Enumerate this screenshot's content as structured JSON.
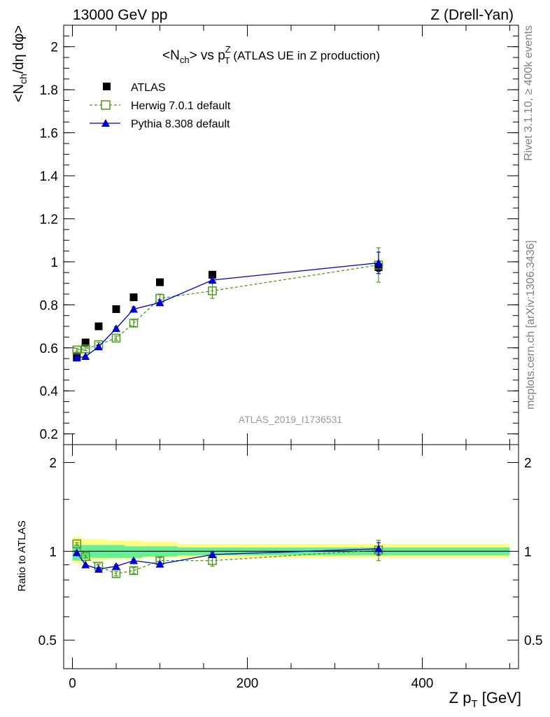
{
  "header": {
    "left": "13000 GeV pp",
    "right": "Z (Drell-Yan)"
  },
  "side_text": {
    "top": "Rivet 3.1.10, ≥ 400k events",
    "bottom": "mcplots.cern.ch [arXiv:1306.3436]"
  },
  "chart_data": [
    {
      "type": "scatter",
      "title": "<N_ch> vs p_T^Z (ATLAS UE in Z production)",
      "title_parts": {
        "a": "<N",
        "a_sub": "ch",
        "b": "> vs p",
        "b_sub": "T",
        "b_sup": "Z",
        "c": " (ATLAS UE in Z production)"
      },
      "ylabel": "<N_ch/dη dφ>",
      "ylabel_parts": {
        "a": "<N",
        "a_sub": "ch",
        "b": "/dη dφ>"
      },
      "watermark": "ATLAS_2019_I1736531",
      "xlim": [
        -10,
        510
      ],
      "ylim": [
        0.15,
        2.1
      ],
      "yticks": [
        0.2,
        0.4,
        0.6,
        0.8,
        1,
        1.2,
        1.4,
        1.6,
        1.8,
        2
      ],
      "ytick_labels": [
        "0.2",
        "0.4",
        "0.6",
        "0.8",
        "1",
        "1.2",
        "1.4",
        "1.6",
        "1.8",
        "2"
      ],
      "legend_position": "top-left",
      "series": [
        {
          "name": "ATLAS",
          "color": "#000000",
          "marker": "filled-square",
          "line": "none",
          "x": [
            5,
            15,
            30,
            50,
            70,
            100,
            160,
            350
          ],
          "y": [
            0.56,
            0.625,
            0.7,
            0.78,
            0.835,
            0.905,
            0.94,
            0.975
          ],
          "yerr": [
            0.005,
            0.005,
            0.005,
            0.005,
            0.005,
            0.005,
            0.01,
            0.02
          ]
        },
        {
          "name": "Herwig 7.0.1 default",
          "color": "#4a9a1a",
          "marker": "open-square",
          "line": "dashed",
          "x": [
            5,
            15,
            30,
            50,
            70,
            100,
            160,
            350
          ],
          "y": [
            0.59,
            0.595,
            0.615,
            0.645,
            0.715,
            0.83,
            0.865,
            0.985
          ],
          "yerr": [
            0.008,
            0.008,
            0.01,
            0.01,
            0.015,
            0.02,
            0.035,
            0.08
          ]
        },
        {
          "name": "Pythia 8.308 default",
          "color": "#0000cc",
          "marker": "filled-triangle",
          "line": "solid",
          "x": [
            5,
            15,
            30,
            50,
            70,
            100,
            160,
            350
          ],
          "y": [
            0.553,
            0.56,
            0.605,
            0.69,
            0.78,
            0.81,
            0.915,
            0.995
          ],
          "yerr": [
            0.005,
            0.005,
            0.008,
            0.008,
            0.01,
            0.012,
            0.015,
            0.05
          ]
        }
      ]
    },
    {
      "type": "scatter",
      "title": "",
      "xlabel": "Z p_T [GeV]",
      "xlabel_parts": {
        "a": "Z p",
        "a_sub": "T",
        "b": " [GeV]"
      },
      "ylabel": "Ratio to ATLAS",
      "xlim": [
        -10,
        510
      ],
      "ylim": [
        0.4,
        2.3
      ],
      "yscale": "log",
      "xticks": [
        0,
        200,
        400
      ],
      "xtick_labels": [
        "0",
        "200",
        "400"
      ],
      "yticks": [
        0.5,
        1,
        2
      ],
      "ytick_labels": [
        "0.5",
        "1",
        "2"
      ],
      "bands": {
        "stat_color": "#66ee99",
        "total_color": "#ffff88",
        "bins": [
          {
            "x0": 0,
            "x1": 10,
            "stat": [
              0.93,
              1.05
            ],
            "total": [
              0.91,
              1.12
            ]
          },
          {
            "x0": 10,
            "x1": 20,
            "stat": [
              0.94,
              1.05
            ],
            "total": [
              0.92,
              1.1
            ]
          },
          {
            "x0": 20,
            "x1": 40,
            "stat": [
              0.95,
              1.05
            ],
            "total": [
              0.93,
              1.1
            ]
          },
          {
            "x0": 40,
            "x1": 60,
            "stat": [
              0.95,
              1.05
            ],
            "total": [
              0.94,
              1.09
            ]
          },
          {
            "x0": 60,
            "x1": 80,
            "stat": [
              0.95,
              1.04
            ],
            "total": [
              0.94,
              1.09
            ]
          },
          {
            "x0": 80,
            "x1": 120,
            "stat": [
              0.96,
              1.04
            ],
            "total": [
              0.95,
              1.08
            ]
          },
          {
            "x0": 120,
            "x1": 200,
            "stat": [
              0.97,
              1.03
            ],
            "total": [
              0.95,
              1.06
            ]
          },
          {
            "x0": 200,
            "x1": 500,
            "stat": [
              0.97,
              1.03
            ],
            "total": [
              0.95,
              1.06
            ]
          }
        ]
      },
      "series": [
        {
          "name": "Herwig 7.0.1 default",
          "color": "#4a9a1a",
          "marker": "open-square",
          "line": "dashed",
          "x": [
            5,
            15,
            30,
            50,
            70,
            100,
            160,
            350
          ],
          "y": [
            1.06,
            0.96,
            0.89,
            0.84,
            0.86,
            0.93,
            0.93,
            1.01
          ],
          "yerr": [
            0.01,
            0.01,
            0.015,
            0.015,
            0.02,
            0.02,
            0.04,
            0.08
          ]
        },
        {
          "name": "Pythia 8.308 default",
          "color": "#0000cc",
          "marker": "filled-triangle",
          "line": "solid",
          "x": [
            5,
            15,
            30,
            50,
            70,
            100,
            160,
            350
          ],
          "y": [
            0.99,
            0.9,
            0.87,
            0.89,
            0.93,
            0.905,
            0.975,
            1.02
          ],
          "yerr": [
            0.005,
            0.005,
            0.01,
            0.01,
            0.01,
            0.012,
            0.015,
            0.05
          ]
        }
      ]
    }
  ]
}
